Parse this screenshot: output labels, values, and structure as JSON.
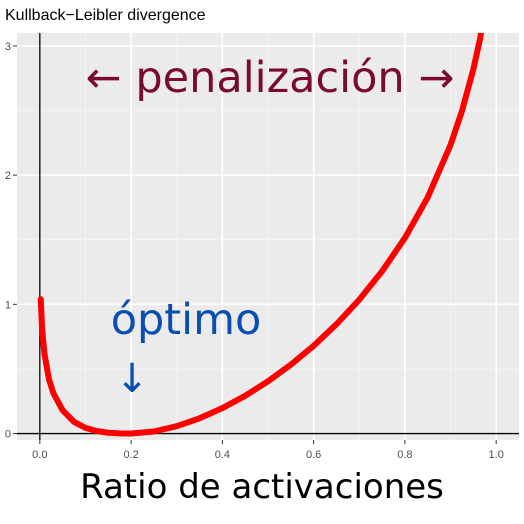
{
  "chart_data": {
    "type": "line",
    "title": "Kullback−Leibler divergence",
    "xlabel": "Ratio de activaciones",
    "ylabel": "",
    "xlim": [
      -0.05,
      1.05
    ],
    "ylim": [
      -0.05,
      3.1
    ],
    "x_ticks": [
      "0.0",
      "0.2",
      "0.4",
      "0.6",
      "0.8",
      "1.0"
    ],
    "x_tick_values": [
      0.0,
      0.2,
      0.4,
      0.6,
      0.8,
      1.0
    ],
    "y_ticks": [
      "0",
      "1",
      "2",
      "3"
    ],
    "y_tick_values": [
      0,
      1,
      2,
      3
    ],
    "grid": true,
    "series": [
      {
        "x": [
          0.002,
          0.005,
          0.01,
          0.02,
          0.03,
          0.05,
          0.075,
          0.1,
          0.125,
          0.15,
          0.175,
          0.2,
          0.25,
          0.3,
          0.35,
          0.4,
          0.45,
          0.5,
          0.55,
          0.6,
          0.65,
          0.7,
          0.75,
          0.8,
          0.85,
          0.9,
          0.925,
          0.95,
          0.965,
          0.98
        ],
        "y": [
          1.04,
          0.81,
          0.62,
          0.42,
          0.31,
          0.18,
          0.09,
          0.044,
          0.019,
          0.0063,
          0.0011,
          0.0,
          0.0158,
          0.057,
          0.118,
          0.197,
          0.292,
          0.404,
          0.533,
          0.679,
          0.846,
          1.036,
          1.256,
          1.514,
          1.828,
          2.234,
          2.496,
          2.82,
          3.06,
          3.4
        ],
        "color": "#ff0000"
      }
    ],
    "vline": {
      "x": 0.0
    },
    "hline": {
      "y": 0.0
    },
    "annotations": [
      {
        "id": "penalization",
        "text": "← penalización →",
        "color": "#7a0a2e"
      },
      {
        "id": "optimum",
        "text": "óptimo",
        "color": "#0a4fb0"
      },
      {
        "id": "optimum_arrow",
        "text": "↓",
        "color": "#0a4fb0"
      }
    ],
    "colors": {
      "panel": "#ebebeb",
      "grid_major": "#ffffff",
      "grid_minor": "#f5f5f5",
      "reference_lines": "#000000",
      "tick_text": "#4d4d4d"
    }
  }
}
